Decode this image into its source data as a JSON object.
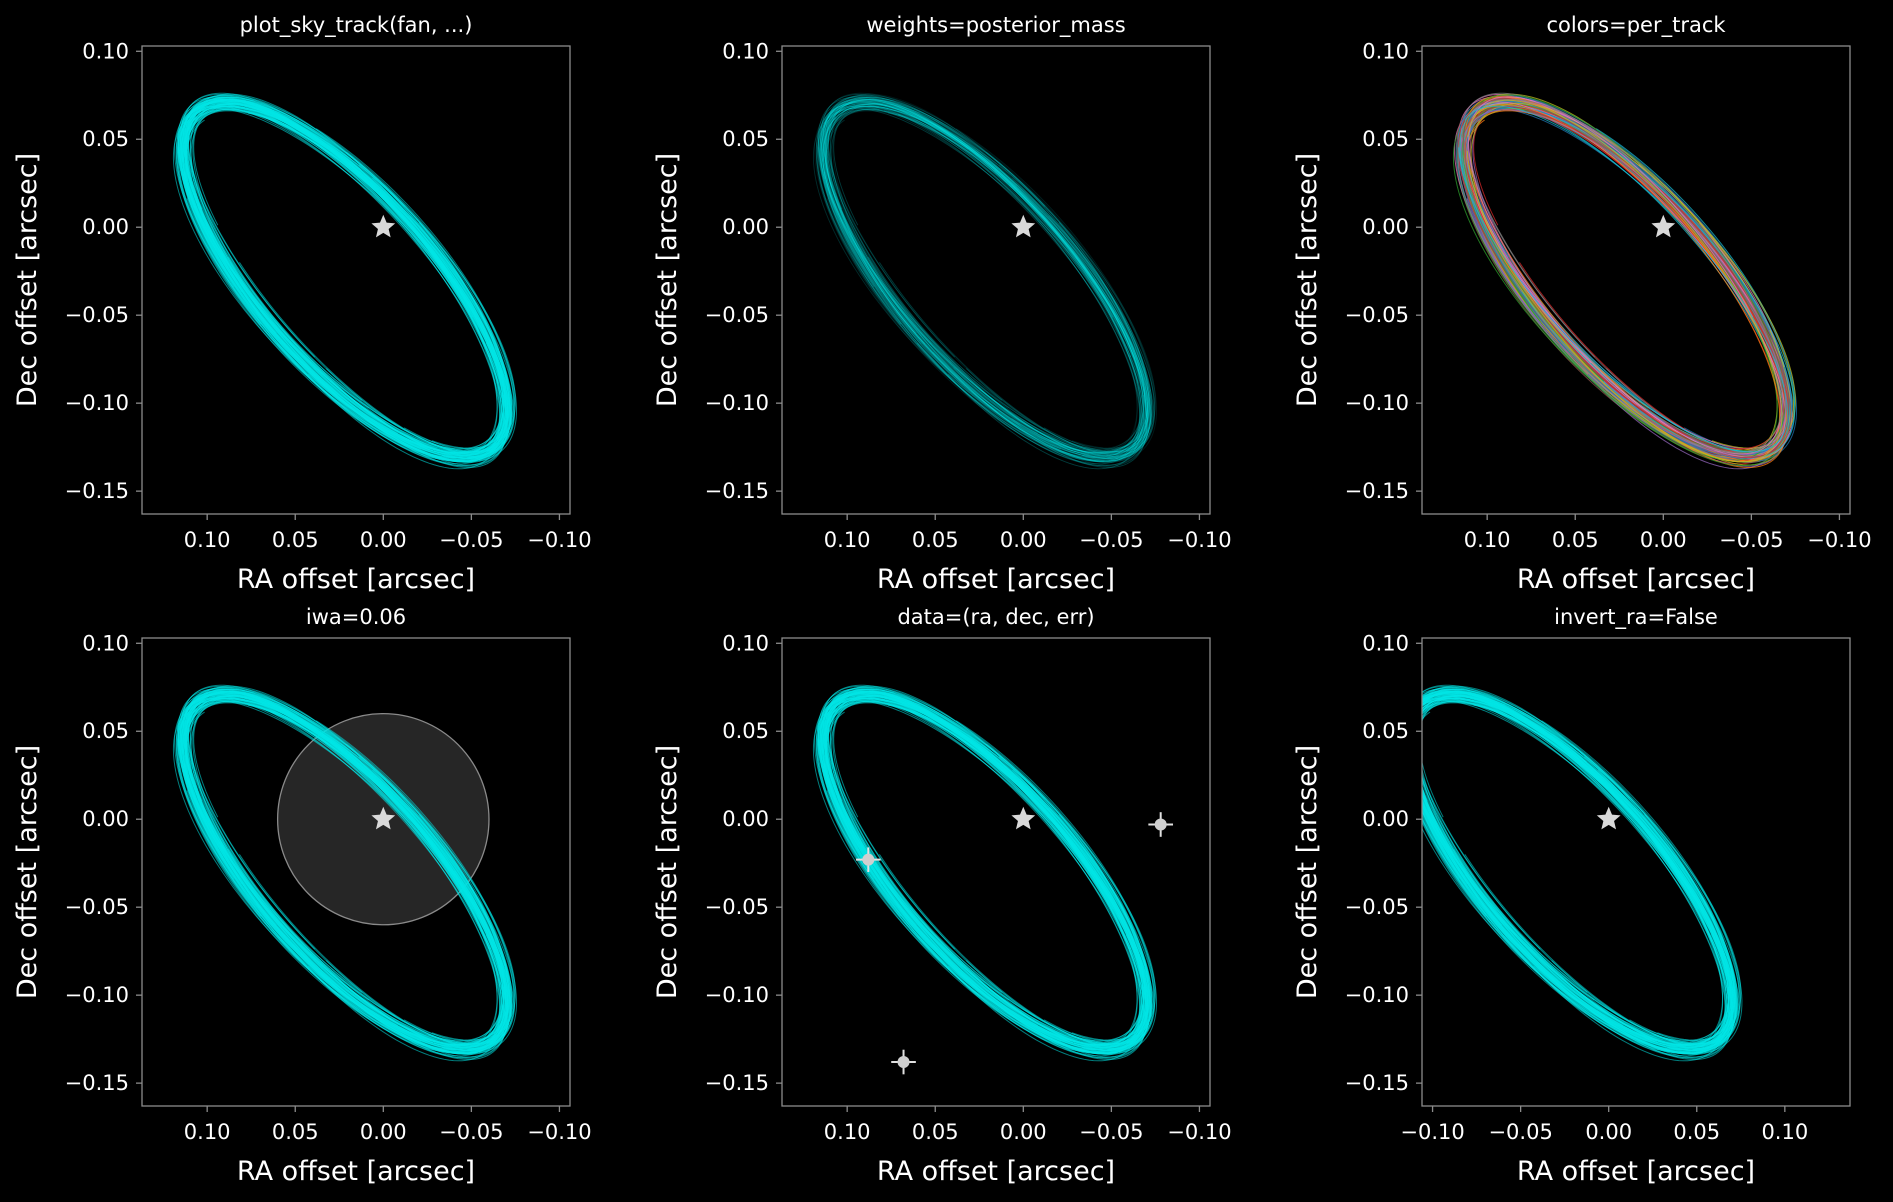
{
  "figure": {
    "background": "#000000",
    "axis_color": "#8c8c8c",
    "track_color": "#00e5e5",
    "star_color": "#d9d9d9"
  },
  "chart_data": [
    {
      "type": "line",
      "title": "plot_sky_track(fan, ...)",
      "xlabel": "RA offset [arcsec]",
      "ylabel": "Dec offset [arcsec]",
      "xlim": [
        0.137,
        -0.106
      ],
      "ylim": [
        -0.163,
        0.103
      ],
      "xticks": [
        "0.10",
        "0.05",
        "0.00",
        "−0.05",
        "−0.10"
      ],
      "xtick_values": [
        0.1,
        0.05,
        0.0,
        -0.05,
        -0.1
      ],
      "yticks": [
        "0.10",
        "0.05",
        "0.00",
        "−0.05",
        "−0.10",
        "−0.15"
      ],
      "ytick_values": [
        0.1,
        0.05,
        0.0,
        -0.05,
        -0.1,
        -0.15
      ],
      "invert_ra": true,
      "orbit": {
        "center_ra": 0.022,
        "center_dec": -0.03,
        "a": 0.1273,
        "b": 0.049,
        "tilt_deg": 48.5
      },
      "n_tracks": 80,
      "track_style": "uniform",
      "star": {
        "ra": 0.0,
        "dec": 0.0
      }
    },
    {
      "type": "line",
      "title": "weights=posterior_mass",
      "xlabel": "RA offset [arcsec]",
      "ylabel": "Dec offset [arcsec]",
      "xlim": [
        0.137,
        -0.106
      ],
      "ylim": [
        -0.163,
        0.103
      ],
      "xticks": [
        "0.10",
        "0.05",
        "0.00",
        "−0.05",
        "−0.10"
      ],
      "xtick_values": [
        0.1,
        0.05,
        0.0,
        -0.05,
        -0.1
      ],
      "yticks": [
        "0.10",
        "0.05",
        "0.00",
        "−0.05",
        "−0.10",
        "−0.15"
      ],
      "ytick_values": [
        0.1,
        0.05,
        0.0,
        -0.05,
        -0.1,
        -0.15
      ],
      "invert_ra": true,
      "orbit": {
        "center_ra": 0.022,
        "center_dec": -0.03,
        "a": 0.1273,
        "b": 0.049,
        "tilt_deg": 48.5
      },
      "n_tracks": 80,
      "track_style": "weighted",
      "star": {
        "ra": 0.0,
        "dec": 0.0
      }
    },
    {
      "type": "line",
      "title": "colors=per_track",
      "xlabel": "RA offset [arcsec]",
      "ylabel": "Dec offset [arcsec]",
      "xlim": [
        0.137,
        -0.106
      ],
      "ylim": [
        -0.163,
        0.103
      ],
      "xticks": [
        "0.10",
        "0.05",
        "0.00",
        "−0.05",
        "−0.10"
      ],
      "xtick_values": [
        0.1,
        0.05,
        0.0,
        -0.05,
        -0.1
      ],
      "yticks": [
        "0.10",
        "0.05",
        "0.00",
        "−0.05",
        "−0.10",
        "−0.15"
      ],
      "ytick_values": [
        0.1,
        0.05,
        0.0,
        -0.05,
        -0.1,
        -0.15
      ],
      "invert_ra": true,
      "orbit": {
        "center_ra": 0.022,
        "center_dec": -0.03,
        "a": 0.1273,
        "b": 0.049,
        "tilt_deg": 48.5
      },
      "n_tracks": 80,
      "track_style": "per_track",
      "track_colors": [
        "#1f77b4",
        "#ff7f0e",
        "#2ca02c",
        "#d62728",
        "#9467bd",
        "#8c564b",
        "#e377c2",
        "#7f7f7f",
        "#bcbd22",
        "#17becf"
      ],
      "star": {
        "ra": 0.0,
        "dec": 0.0
      }
    },
    {
      "type": "line",
      "title": "iwa=0.06",
      "xlabel": "RA offset [arcsec]",
      "ylabel": "Dec offset [arcsec]",
      "xlim": [
        0.137,
        -0.106
      ],
      "ylim": [
        -0.163,
        0.103
      ],
      "xticks": [
        "0.10",
        "0.05",
        "0.00",
        "−0.05",
        "−0.10"
      ],
      "xtick_values": [
        0.1,
        0.05,
        0.0,
        -0.05,
        -0.1
      ],
      "yticks": [
        "0.10",
        "0.05",
        "0.00",
        "−0.05",
        "−0.10",
        "−0.15"
      ],
      "ytick_values": [
        0.1,
        0.05,
        0.0,
        -0.05,
        -0.1,
        -0.15
      ],
      "invert_ra": true,
      "orbit": {
        "center_ra": 0.022,
        "center_dec": -0.03,
        "a": 0.1273,
        "b": 0.049,
        "tilt_deg": 48.5
      },
      "n_tracks": 80,
      "track_style": "uniform",
      "iwa_radius": 0.06,
      "star": {
        "ra": 0.0,
        "dec": 0.0
      }
    },
    {
      "type": "line",
      "title": "data=(ra, dec, err)",
      "xlabel": "RA offset [arcsec]",
      "ylabel": "Dec offset [arcsec]",
      "xlim": [
        0.137,
        -0.106
      ],
      "ylim": [
        -0.163,
        0.103
      ],
      "xticks": [
        "0.10",
        "0.05",
        "0.00",
        "−0.05",
        "−0.10"
      ],
      "xtick_values": [
        0.1,
        0.05,
        0.0,
        -0.05,
        -0.1
      ],
      "yticks": [
        "0.10",
        "0.05",
        "0.00",
        "−0.05",
        "−0.10",
        "−0.15"
      ],
      "ytick_values": [
        0.1,
        0.05,
        0.0,
        -0.05,
        -0.1,
        -0.15
      ],
      "invert_ra": true,
      "orbit": {
        "center_ra": 0.022,
        "center_dec": -0.03,
        "a": 0.1273,
        "b": 0.049,
        "tilt_deg": 48.5
      },
      "n_tracks": 80,
      "track_style": "uniform",
      "data_points": [
        {
          "ra": 0.088,
          "dec": -0.023,
          "err": 0.007
        },
        {
          "ra": 0.068,
          "dec": -0.138,
          "err": 0.007
        },
        {
          "ra": -0.078,
          "dec": -0.003,
          "err": 0.007
        }
      ],
      "star": {
        "ra": 0.0,
        "dec": 0.0
      }
    },
    {
      "type": "line",
      "title": "invert_ra=False",
      "xlabel": "RA offset [arcsec]",
      "ylabel": "Dec offset [arcsec]",
      "xlim": [
        -0.106,
        0.137
      ],
      "ylim": [
        -0.163,
        0.103
      ],
      "xticks": [
        "−0.10",
        "−0.05",
        "0.00",
        "0.05",
        "0.10"
      ],
      "xtick_values": [
        -0.1,
        -0.05,
        0.0,
        0.05,
        0.1
      ],
      "yticks": [
        "0.10",
        "0.05",
        "0.00",
        "−0.05",
        "−0.10",
        "−0.15"
      ],
      "ytick_values": [
        0.1,
        0.05,
        0.0,
        -0.05,
        -0.1,
        -0.15
      ],
      "invert_ra": false,
      "orbit": {
        "center_ra": 0.022,
        "center_dec": -0.03,
        "a": 0.1273,
        "b": 0.049,
        "tilt_deg": 48.5
      },
      "n_tracks": 80,
      "track_style": "uniform",
      "star": {
        "ra": 0.0,
        "dec": 0.0
      }
    }
  ]
}
